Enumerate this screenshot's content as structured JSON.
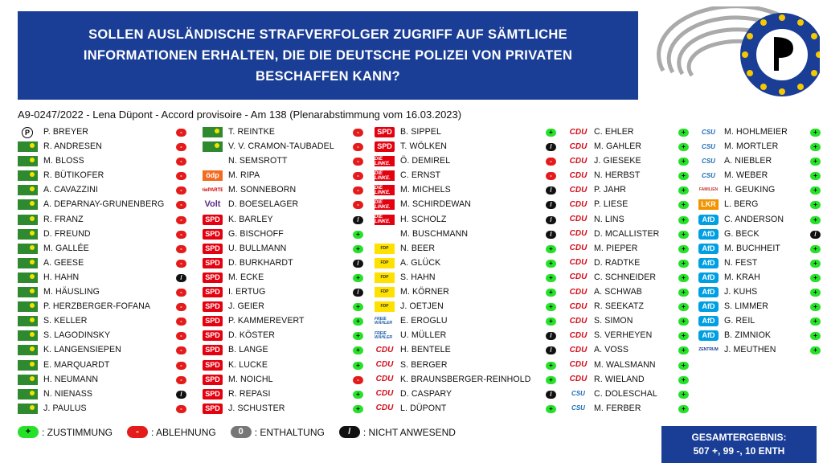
{
  "title": "SOLLEN AUSLÄNDISCHE STRAFVERFOLGER ZUGRIFF AUF SÄMTLICHE INFORMATIONEN ERHALTEN, DIE DIE DEUTSCHE POLIZEI VON PRIVATEN BESCHAFFEN KANN?",
  "subtitle": "A9-0247/2022 - Lena Düpont - Accord provisoire - Am 138 (Plenarabstimmung vom 16.03.2023)",
  "vote_symbols": {
    "plus": "+",
    "minus": "-",
    "abst": "0",
    "na": "/"
  },
  "columns": [
    [
      {
        "party": "piraten",
        "logo": "P",
        "name": "P. BREYER",
        "vote": "minus"
      },
      {
        "party": "gruene",
        "logo": "",
        "name": "R. ANDRESEN",
        "vote": "minus"
      },
      {
        "party": "gruene",
        "logo": "",
        "name": "M. BLOSS",
        "vote": "minus"
      },
      {
        "party": "gruene",
        "logo": "",
        "name": "R. BÜTIKOFER",
        "vote": "minus"
      },
      {
        "party": "gruene",
        "logo": "",
        "name": "A. CAVAZZINI",
        "vote": "minus"
      },
      {
        "party": "gruene",
        "logo": "",
        "name": "A. DEPARNAY-GRUNENBERG",
        "vote": "minus"
      },
      {
        "party": "gruene",
        "logo": "",
        "name": "R. FRANZ",
        "vote": "minus"
      },
      {
        "party": "gruene",
        "logo": "",
        "name": "D. FREUND",
        "vote": "minus"
      },
      {
        "party": "gruene",
        "logo": "",
        "name": "M. GALLÉE",
        "vote": "minus"
      },
      {
        "party": "gruene",
        "logo": "",
        "name": "A. GEESE",
        "vote": "minus"
      },
      {
        "party": "gruene",
        "logo": "",
        "name": "H. HAHN",
        "vote": "na"
      },
      {
        "party": "gruene",
        "logo": "",
        "name": "M. HÄUSLING",
        "vote": "minus"
      },
      {
        "party": "gruene",
        "logo": "",
        "name": "P. HERZBERGER-FOFANA",
        "vote": "minus"
      },
      {
        "party": "gruene",
        "logo": "",
        "name": "S. KELLER",
        "vote": "minus"
      },
      {
        "party": "gruene",
        "logo": "",
        "name": "S. LAGODINSKY",
        "vote": "minus"
      },
      {
        "party": "gruene",
        "logo": "",
        "name": "K. LANGENSIEPEN",
        "vote": "minus"
      },
      {
        "party": "gruene",
        "logo": "",
        "name": "E. MARQUARDT",
        "vote": "minus"
      },
      {
        "party": "gruene",
        "logo": "",
        "name": "H. NEUMANN",
        "vote": "minus"
      },
      {
        "party": "gruene",
        "logo": "",
        "name": "N. NIENASS",
        "vote": "na"
      },
      {
        "party": "gruene",
        "logo": "",
        "name": "J. PAULUS",
        "vote": "minus"
      }
    ],
    [
      {
        "party": "gruene",
        "logo": "",
        "name": "T. REINTKE",
        "vote": "minus"
      },
      {
        "party": "gruene",
        "logo": "",
        "name": "V. V. CRAMON-TAUBADEL",
        "vote": "minus"
      },
      {
        "party": "none",
        "logo": "",
        "name": "N. SEMSROTT",
        "vote": "minus"
      },
      {
        "party": "oedp",
        "logo": "ödp",
        "name": "M. RIPA",
        "vote": "minus"
      },
      {
        "party": "pp",
        "logo": "DiePARTEI",
        "name": "M. SONNEBORN",
        "vote": "minus"
      },
      {
        "party": "volt",
        "logo": "Volt",
        "name": "D. BOESELAGER",
        "vote": "minus"
      },
      {
        "party": "spd",
        "logo": "SPD",
        "name": "K. BARLEY",
        "vote": "na"
      },
      {
        "party": "spd",
        "logo": "SPD",
        "name": "G. BISCHOFF",
        "vote": "plus"
      },
      {
        "party": "spd",
        "logo": "SPD",
        "name": "U. BULLMANN",
        "vote": "plus"
      },
      {
        "party": "spd",
        "logo": "SPD",
        "name": "D. BURKHARDT",
        "vote": "na"
      },
      {
        "party": "spd",
        "logo": "SPD",
        "name": "M. ECKE",
        "vote": "plus"
      },
      {
        "party": "spd",
        "logo": "SPD",
        "name": "I. ERTUG",
        "vote": "na"
      },
      {
        "party": "spd",
        "logo": "SPD",
        "name": "J. GEIER",
        "vote": "plus"
      },
      {
        "party": "spd",
        "logo": "SPD",
        "name": "P. KAMMEREVERT",
        "vote": "plus"
      },
      {
        "party": "spd",
        "logo": "SPD",
        "name": "D. KÖSTER",
        "vote": "plus"
      },
      {
        "party": "spd",
        "logo": "SPD",
        "name": "B. LANGE",
        "vote": "plus"
      },
      {
        "party": "spd",
        "logo": "SPD",
        "name": "K. LUCKE",
        "vote": "plus"
      },
      {
        "party": "spd",
        "logo": "SPD",
        "name": "M. NOICHL",
        "vote": "minus"
      },
      {
        "party": "spd",
        "logo": "SPD",
        "name": "R. REPASI",
        "vote": "plus"
      },
      {
        "party": "spd",
        "logo": "SPD",
        "name": "J. SCHUSTER",
        "vote": "plus"
      }
    ],
    [
      {
        "party": "spd",
        "logo": "SPD",
        "name": "B. SIPPEL",
        "vote": "plus"
      },
      {
        "party": "spd",
        "logo": "SPD",
        "name": "T. WÖLKEN",
        "vote": "na"
      },
      {
        "party": "linke",
        "logo": "DIE LINKE.",
        "name": "Ö. DEMIREL",
        "vote": "minus"
      },
      {
        "party": "linke",
        "logo": "DIE LINKE.",
        "name": "C. ERNST",
        "vote": "minus"
      },
      {
        "party": "linke",
        "logo": "DIE LINKE.",
        "name": "M. MICHELS",
        "vote": "na"
      },
      {
        "party": "linke",
        "logo": "DIE LINKE.",
        "name": "M. SCHIRDEWAN",
        "vote": "na"
      },
      {
        "party": "linke",
        "logo": "DIE LINKE.",
        "name": "H. SCHOLZ",
        "vote": "na"
      },
      {
        "party": "none",
        "logo": "",
        "name": "M. BUSCHMANN",
        "vote": "na"
      },
      {
        "party": "fw",
        "logo": "FDP",
        "name": "N. BEER",
        "vote": "plus"
      },
      {
        "party": "fw",
        "logo": "FDP",
        "name": "A. GLÜCK",
        "vote": "plus"
      },
      {
        "party": "fw",
        "logo": "FDP",
        "name": "S. HAHN",
        "vote": "plus"
      },
      {
        "party": "fw",
        "logo": "FDP",
        "name": "M. KÖRNER",
        "vote": "plus"
      },
      {
        "party": "fw",
        "logo": "FDP",
        "name": "J. OETJEN",
        "vote": "plus"
      },
      {
        "party": "fw2",
        "logo": "FREIE WÄHLER",
        "name": "E. EROGLU",
        "vote": "plus"
      },
      {
        "party": "fw2",
        "logo": "FREIE WÄHLER",
        "name": "U. MÜLLER",
        "vote": "na"
      },
      {
        "party": "cdu",
        "logo": "CDU",
        "name": "H. BENTELE",
        "vote": "na"
      },
      {
        "party": "cdu",
        "logo": "CDU",
        "name": "S. BERGER",
        "vote": "plus"
      },
      {
        "party": "cdu",
        "logo": "CDU",
        "name": "K. BRAUNSBERGER-REINHOLD",
        "vote": "plus"
      },
      {
        "party": "cdu",
        "logo": "CDU",
        "name": "D. CASPARY",
        "vote": "na"
      },
      {
        "party": "cdu",
        "logo": "CDU",
        "name": "L. DÜPONT",
        "vote": "plus"
      }
    ],
    [
      {
        "party": "cdu",
        "logo": "CDU",
        "name": "C. EHLER",
        "vote": "plus"
      },
      {
        "party": "cdu",
        "logo": "CDU",
        "name": "M. GAHLER",
        "vote": "plus"
      },
      {
        "party": "cdu",
        "logo": "CDU",
        "name": "J. GIESEKE",
        "vote": "plus"
      },
      {
        "party": "cdu",
        "logo": "CDU",
        "name": "N. HERBST",
        "vote": "plus"
      },
      {
        "party": "cdu",
        "logo": "CDU",
        "name": "P. JAHR",
        "vote": "plus"
      },
      {
        "party": "cdu",
        "logo": "CDU",
        "name": "P. LIESE",
        "vote": "plus"
      },
      {
        "party": "cdu",
        "logo": "CDU",
        "name": "N. LINS",
        "vote": "plus"
      },
      {
        "party": "cdu",
        "logo": "CDU",
        "name": "D. MCALLISTER",
        "vote": "plus"
      },
      {
        "party": "cdu",
        "logo": "CDU",
        "name": "M. PIEPER",
        "vote": "plus"
      },
      {
        "party": "cdu",
        "logo": "CDU",
        "name": "D. RADTKE",
        "vote": "plus"
      },
      {
        "party": "cdu",
        "logo": "CDU",
        "name": "C. SCHNEIDER",
        "vote": "plus"
      },
      {
        "party": "cdu",
        "logo": "CDU",
        "name": "A. SCHWAB",
        "vote": "plus"
      },
      {
        "party": "cdu",
        "logo": "CDU",
        "name": "R. SEEKATZ",
        "vote": "plus"
      },
      {
        "party": "cdu",
        "logo": "CDU",
        "name": "S. SIMON",
        "vote": "plus"
      },
      {
        "party": "cdu",
        "logo": "CDU",
        "name": "S. VERHEYEN",
        "vote": "plus"
      },
      {
        "party": "cdu",
        "logo": "CDU",
        "name": "A. VOSS",
        "vote": "plus"
      },
      {
        "party": "cdu",
        "logo": "CDU",
        "name": "M. WALSMANN",
        "vote": "plus"
      },
      {
        "party": "cdu",
        "logo": "CDU",
        "name": "R. WIELAND",
        "vote": "plus"
      },
      {
        "party": "csu",
        "logo": "CSU",
        "name": "C. DOLESCHAL",
        "vote": "plus"
      },
      {
        "party": "csu",
        "logo": "CSU",
        "name": "M. FERBER",
        "vote": "plus"
      }
    ],
    [
      {
        "party": "csu",
        "logo": "CSU",
        "name": "M. HOHLMEIER",
        "vote": "plus"
      },
      {
        "party": "csu",
        "logo": "CSU",
        "name": "M. MORTLER",
        "vote": "plus"
      },
      {
        "party": "csu",
        "logo": "CSU",
        "name": "A. NIEBLER",
        "vote": "plus"
      },
      {
        "party": "csu",
        "logo": "CSU",
        "name": "M. WEBER",
        "vote": "plus"
      },
      {
        "party": "fam",
        "logo": "FAMILIEN",
        "name": "H. GEUKING",
        "vote": "plus"
      },
      {
        "party": "lkr",
        "logo": "LKR",
        "name": "L. BERG",
        "vote": "plus"
      },
      {
        "party": "afd",
        "logo": "AfD",
        "name": "C. ANDERSON",
        "vote": "plus"
      },
      {
        "party": "afd",
        "logo": "AfD",
        "name": "G. BECK",
        "vote": "na"
      },
      {
        "party": "afd",
        "logo": "AfD",
        "name": "M. BUCHHEIT",
        "vote": "plus"
      },
      {
        "party": "afd",
        "logo": "AfD",
        "name": "N. FEST",
        "vote": "plus"
      },
      {
        "party": "afd",
        "logo": "AfD",
        "name": "M. KRAH",
        "vote": "plus"
      },
      {
        "party": "afd",
        "logo": "AfD",
        "name": "J. KUHS",
        "vote": "plus"
      },
      {
        "party": "afd",
        "logo": "AfD",
        "name": "S. LIMMER",
        "vote": "plus"
      },
      {
        "party": "afd",
        "logo": "AfD",
        "name": "G. REIL",
        "vote": "plus"
      },
      {
        "party": "afd",
        "logo": "AfD",
        "name": "B. ZIMNIOK",
        "vote": "plus"
      },
      {
        "party": "zen",
        "logo": "ZENTRUM",
        "name": "J. MEUTHEN",
        "vote": "plus"
      }
    ]
  ],
  "legend": [
    {
      "vote": "plus",
      "label": ": ZUSTIMMUNG"
    },
    {
      "vote": "minus",
      "label": ": ABLEHNUNG"
    },
    {
      "vote": "abst",
      "label": ": ENTHALTUNG"
    },
    {
      "vote": "na",
      "label": ": NICHT ANWESEND"
    }
  ],
  "result": {
    "label": "GESAMTERGEBNIS:",
    "value": "507 +, 99 -, 10 ENTH"
  },
  "colors": {
    "header_blue": "#1a3d96",
    "plus": "#27e02a",
    "minus": "#e31b1b",
    "na": "#111111",
    "abst": "#777777"
  }
}
